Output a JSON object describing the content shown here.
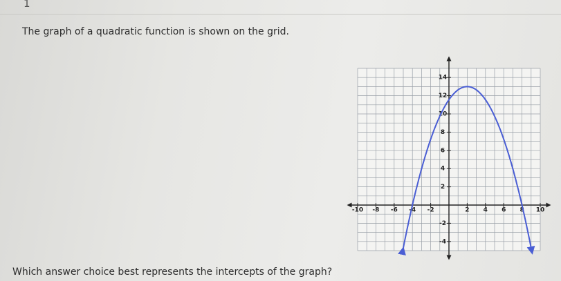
{
  "question": {
    "number": "1",
    "prompt": "The graph of a quadratic function is shown on the grid.",
    "ask": "Which answer choice best represents the intercepts of the graph?"
  },
  "graph": {
    "xlim": [
      -10,
      10
    ],
    "ylim": [
      -5,
      15
    ],
    "xticks": [
      -10,
      -8,
      -6,
      -4,
      -2,
      2,
      4,
      6,
      8,
      10
    ],
    "yticks": [
      -4,
      -2,
      2,
      4,
      6,
      8,
      10,
      12,
      14
    ],
    "grid": true,
    "curve": {
      "vertex": [
        2,
        13
      ],
      "x_intercepts": [
        -4,
        8
      ],
      "color": "#4a5ed4"
    }
  }
}
